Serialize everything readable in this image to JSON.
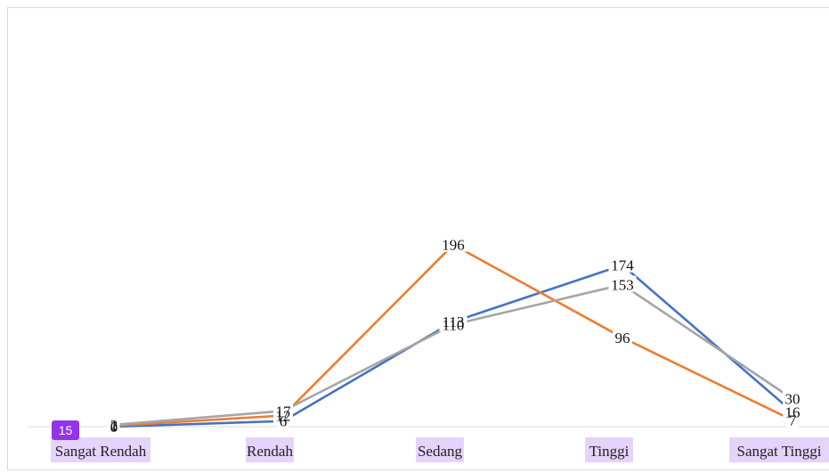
{
  "chart_data": {
    "type": "line",
    "categories": [
      "Sangat Rendah",
      "Rendah",
      "Sedang",
      "Tinggi",
      "Sangat Tinggi"
    ],
    "series": [
      {
        "values": [
          0,
          6,
          113,
          174,
          16
        ],
        "color": "#4472c4"
      },
      {
        "values": [
          1,
          12,
          196,
          96,
          7
        ],
        "color": "#ed7d31"
      },
      {
        "values": [
          2,
          17,
          110,
          153,
          30
        ],
        "color": "#a5a5a5"
      }
    ],
    "ylim": [
      0,
      450
    ],
    "grid": false,
    "legend": "none"
  },
  "badge": {
    "label": "15"
  }
}
